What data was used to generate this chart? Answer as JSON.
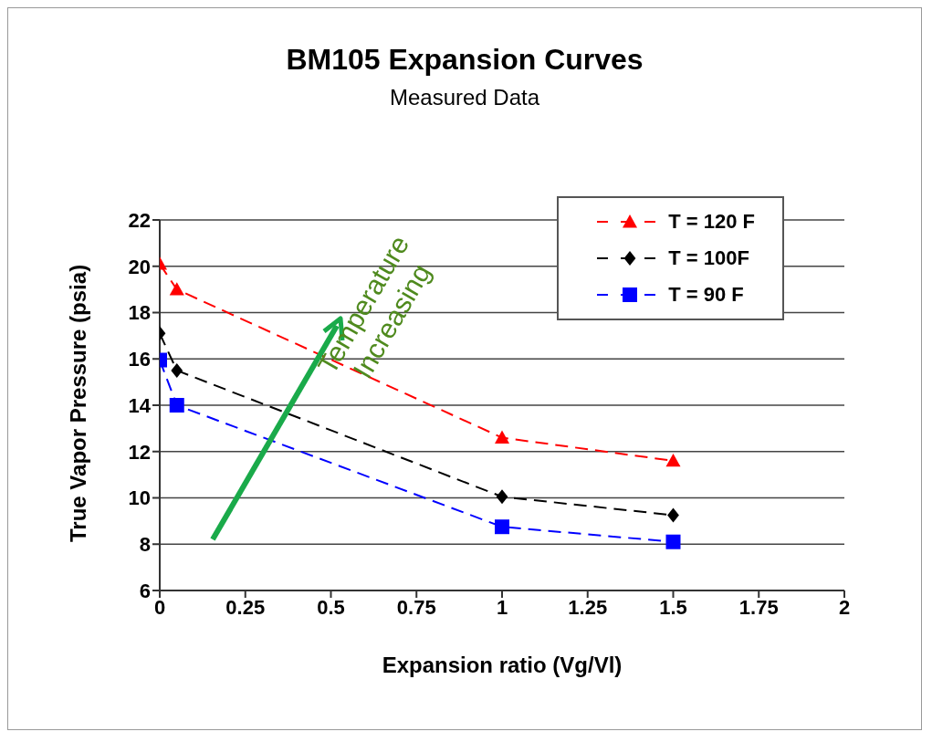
{
  "chart_data": {
    "type": "line",
    "title": "BM105 Expansion Curves",
    "subtitle": "Measured Data",
    "xlabel": "Expansion ratio (Vg/Vl)",
    "ylabel": "True Vapor Pressure (psia)",
    "x": [
      0,
      0.05,
      1,
      1.5
    ],
    "series": [
      {
        "name": "T = 120 F",
        "color": "#ff0000",
        "marker": "triangle",
        "values": [
          20.1,
          19,
          12.6,
          11.6
        ]
      },
      {
        "name": "T = 100F",
        "color": "#000000",
        "marker": "diamond",
        "values": [
          17.1,
          15.5,
          10.05,
          9.25
        ]
      },
      {
        "name": "T = 90 F",
        "color": "#0000ff",
        "marker": "square",
        "values": [
          15.95,
          14,
          8.75,
          8.1
        ]
      }
    ],
    "xlim": [
      0,
      2
    ],
    "xticks": [
      0,
      0.25,
      0.5,
      0.75,
      1,
      1.25,
      1.5,
      1.75,
      2
    ],
    "ylim": [
      6,
      22
    ],
    "yticks": [
      6,
      8,
      10,
      12,
      14,
      16,
      18,
      20,
      22
    ],
    "grid": "y",
    "legend": "top right",
    "line_style": "dashed",
    "annotations": [
      "Temperature Increasing"
    ]
  }
}
